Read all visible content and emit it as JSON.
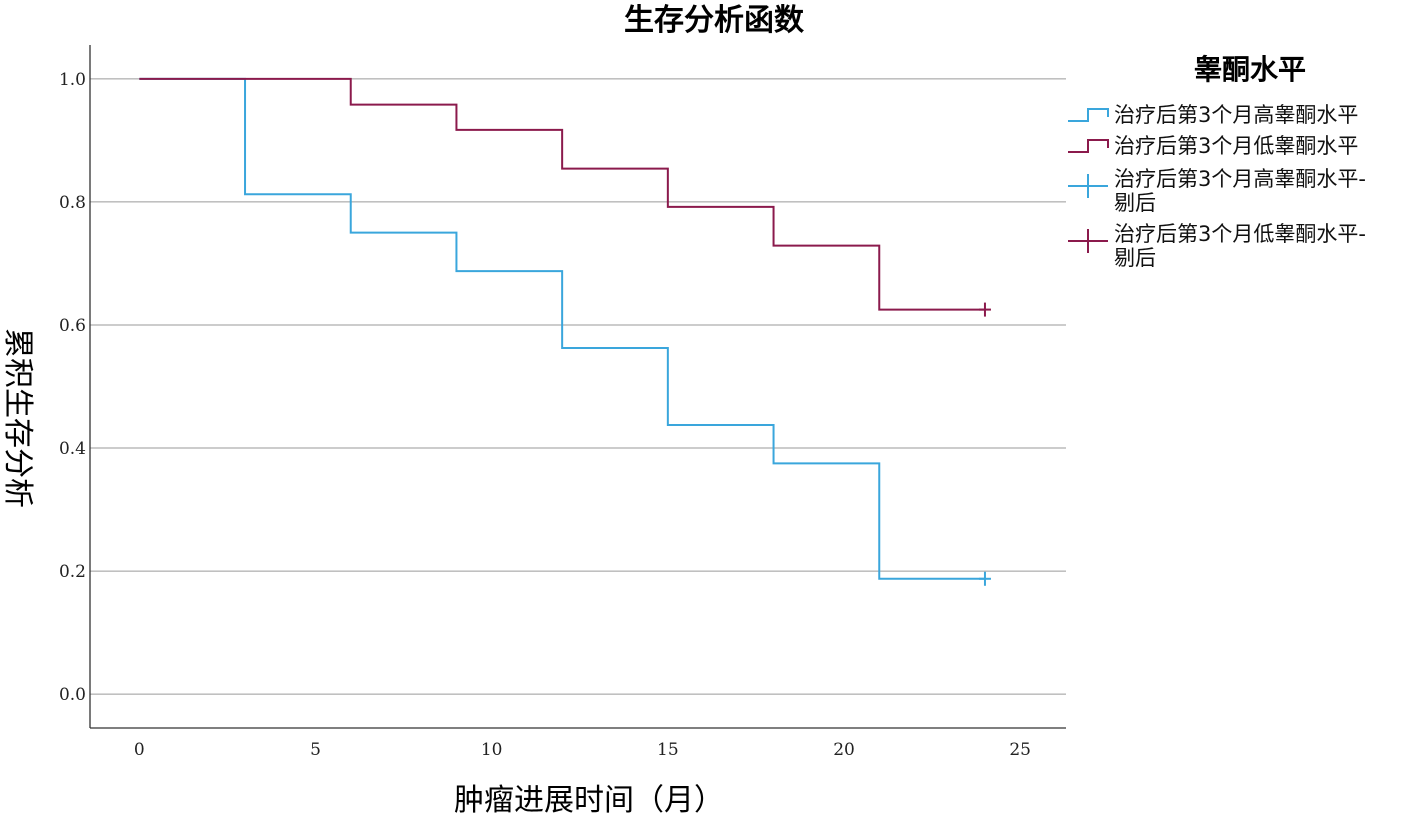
{
  "chart_data": {
    "type": "line",
    "title": "生存分析函数",
    "xlabel": "肿瘤进展时间（月）",
    "ylabel": "累积生存分析",
    "xlim": [
      -1.4,
      26.3
    ],
    "ylim": [
      -0.055,
      1.055
    ],
    "xticks": [
      0,
      5,
      10,
      15,
      20,
      25
    ],
    "yticks": [
      0.0,
      0.2,
      0.4,
      0.6,
      0.8,
      1.0
    ],
    "ytick_labels": [
      "0.0",
      "0.2",
      "0.4",
      "0.6",
      "0.8",
      "1.0"
    ],
    "grid": "horizontal",
    "legend": {
      "title": "睾酮水平",
      "placement": "right",
      "entries": [
        {
          "label": "治疗后第3个月高睾酮水平",
          "marker": "step",
          "color": "#3aa6dc"
        },
        {
          "label": "治疗后第3个月低睾酮水平",
          "marker": "step",
          "color": "#8b1a4c"
        },
        {
          "label": "治疗后第3个月高睾酮水平-",
          "label2": "剔后",
          "marker": "plus",
          "color": "#3aa6dc"
        },
        {
          "label": "治疗后第3个月低睾酮水平-",
          "label2": "剔后",
          "marker": "plus",
          "color": "#8b1a4c"
        }
      ]
    },
    "series": [
      {
        "name": "治疗后第3个月高睾酮水平",
        "color": "#3aa6dc",
        "steps": [
          [
            0,
            1.0
          ],
          [
            3,
            0.8125
          ],
          [
            6,
            0.75
          ],
          [
            9,
            0.6875
          ],
          [
            12,
            0.5625
          ],
          [
            15,
            0.4375
          ],
          [
            18,
            0.375
          ],
          [
            21,
            0.1875
          ]
        ],
        "end_x": 24,
        "censored": [
          [
            24,
            0.1875
          ]
        ]
      },
      {
        "name": "治疗后第3个月低睾酮水平",
        "color": "#8b1a4c",
        "steps": [
          [
            0,
            1.0
          ],
          [
            6,
            0.958
          ],
          [
            9,
            0.917
          ],
          [
            12,
            0.854
          ],
          [
            15,
            0.792
          ],
          [
            18,
            0.729
          ],
          [
            21,
            0.625
          ]
        ],
        "end_x": 24,
        "censored": [
          [
            24,
            0.625
          ]
        ]
      }
    ]
  }
}
